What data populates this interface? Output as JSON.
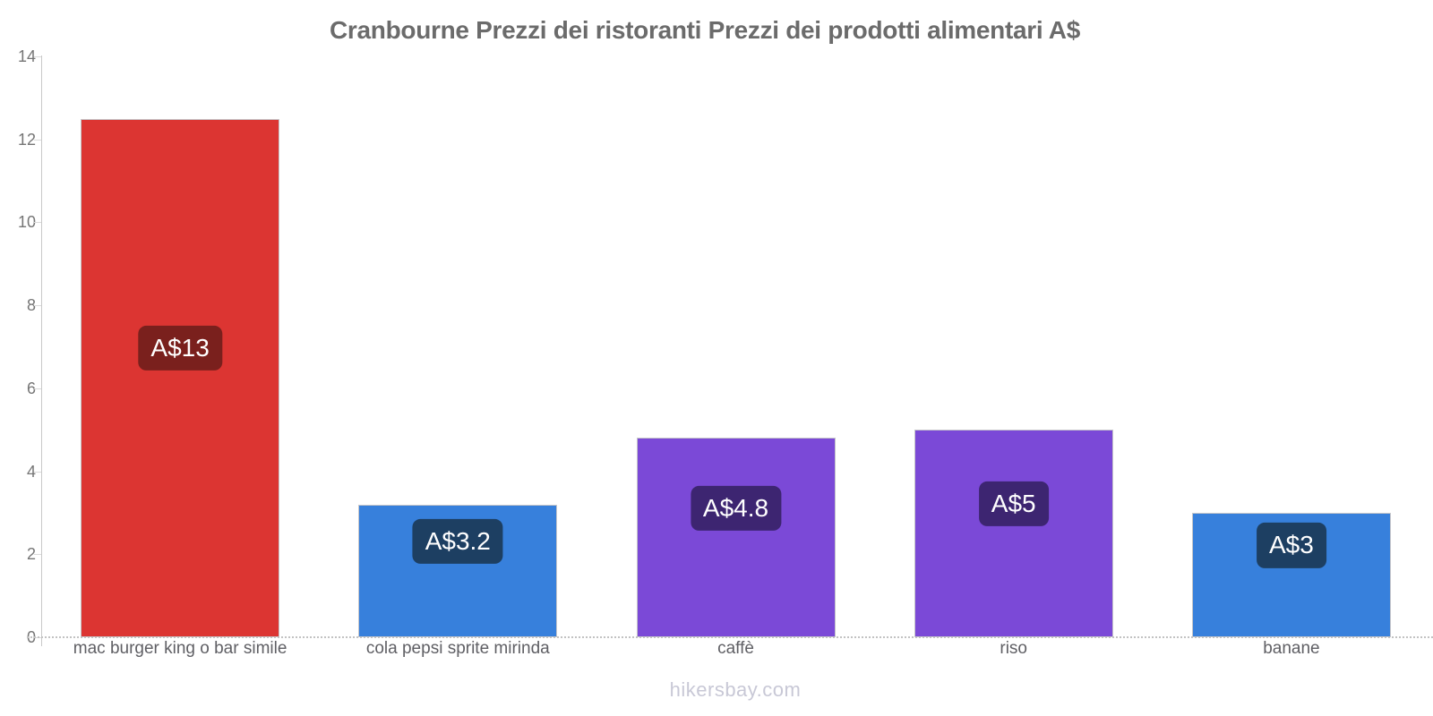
{
  "title": "Cranbourne Prezzi dei ristoranti Prezzi dei prodotti alimentari A$",
  "footer": "hikersbay.com",
  "chart_data": {
    "type": "bar",
    "title": "Cranbourne Prezzi dei ristoranti Prezzi dei prodotti alimentari A$",
    "categories": [
      "mac burger king o bar simile",
      "cola pepsi sprite mirinda",
      "caffè",
      "riso",
      "banane"
    ],
    "values": [
      12.5,
      3.2,
      4.8,
      5,
      3
    ],
    "bar_labels": [
      "A$13",
      "A$3.2",
      "A$4.8",
      "A$5",
      "A$3"
    ],
    "bar_colors": [
      "#dc3532",
      "#3780dc",
      "#7b49d7",
      "#7b49d7",
      "#3780dc"
    ],
    "label_bg_colors": [
      "#7a201d",
      "#1d3f62",
      "#3d2571",
      "#3d2571",
      "#1d3f62"
    ],
    "currency": "A$",
    "xlabel": "",
    "ylabel": "",
    "ylim": [
      0,
      14
    ],
    "yticks": [
      0,
      2,
      4,
      6,
      8,
      10,
      12,
      14
    ],
    "grid": "off",
    "legend": "none",
    "watermark": "hikersbay.com",
    "colors": {
      "title_text": "#6b6b6b",
      "tick_text": "#757575",
      "category_text": "#5f5f64",
      "axis_line": "#c9c9c9",
      "badge_text": "#ffffff",
      "watermark_text": "#c8c8d6"
    }
  }
}
